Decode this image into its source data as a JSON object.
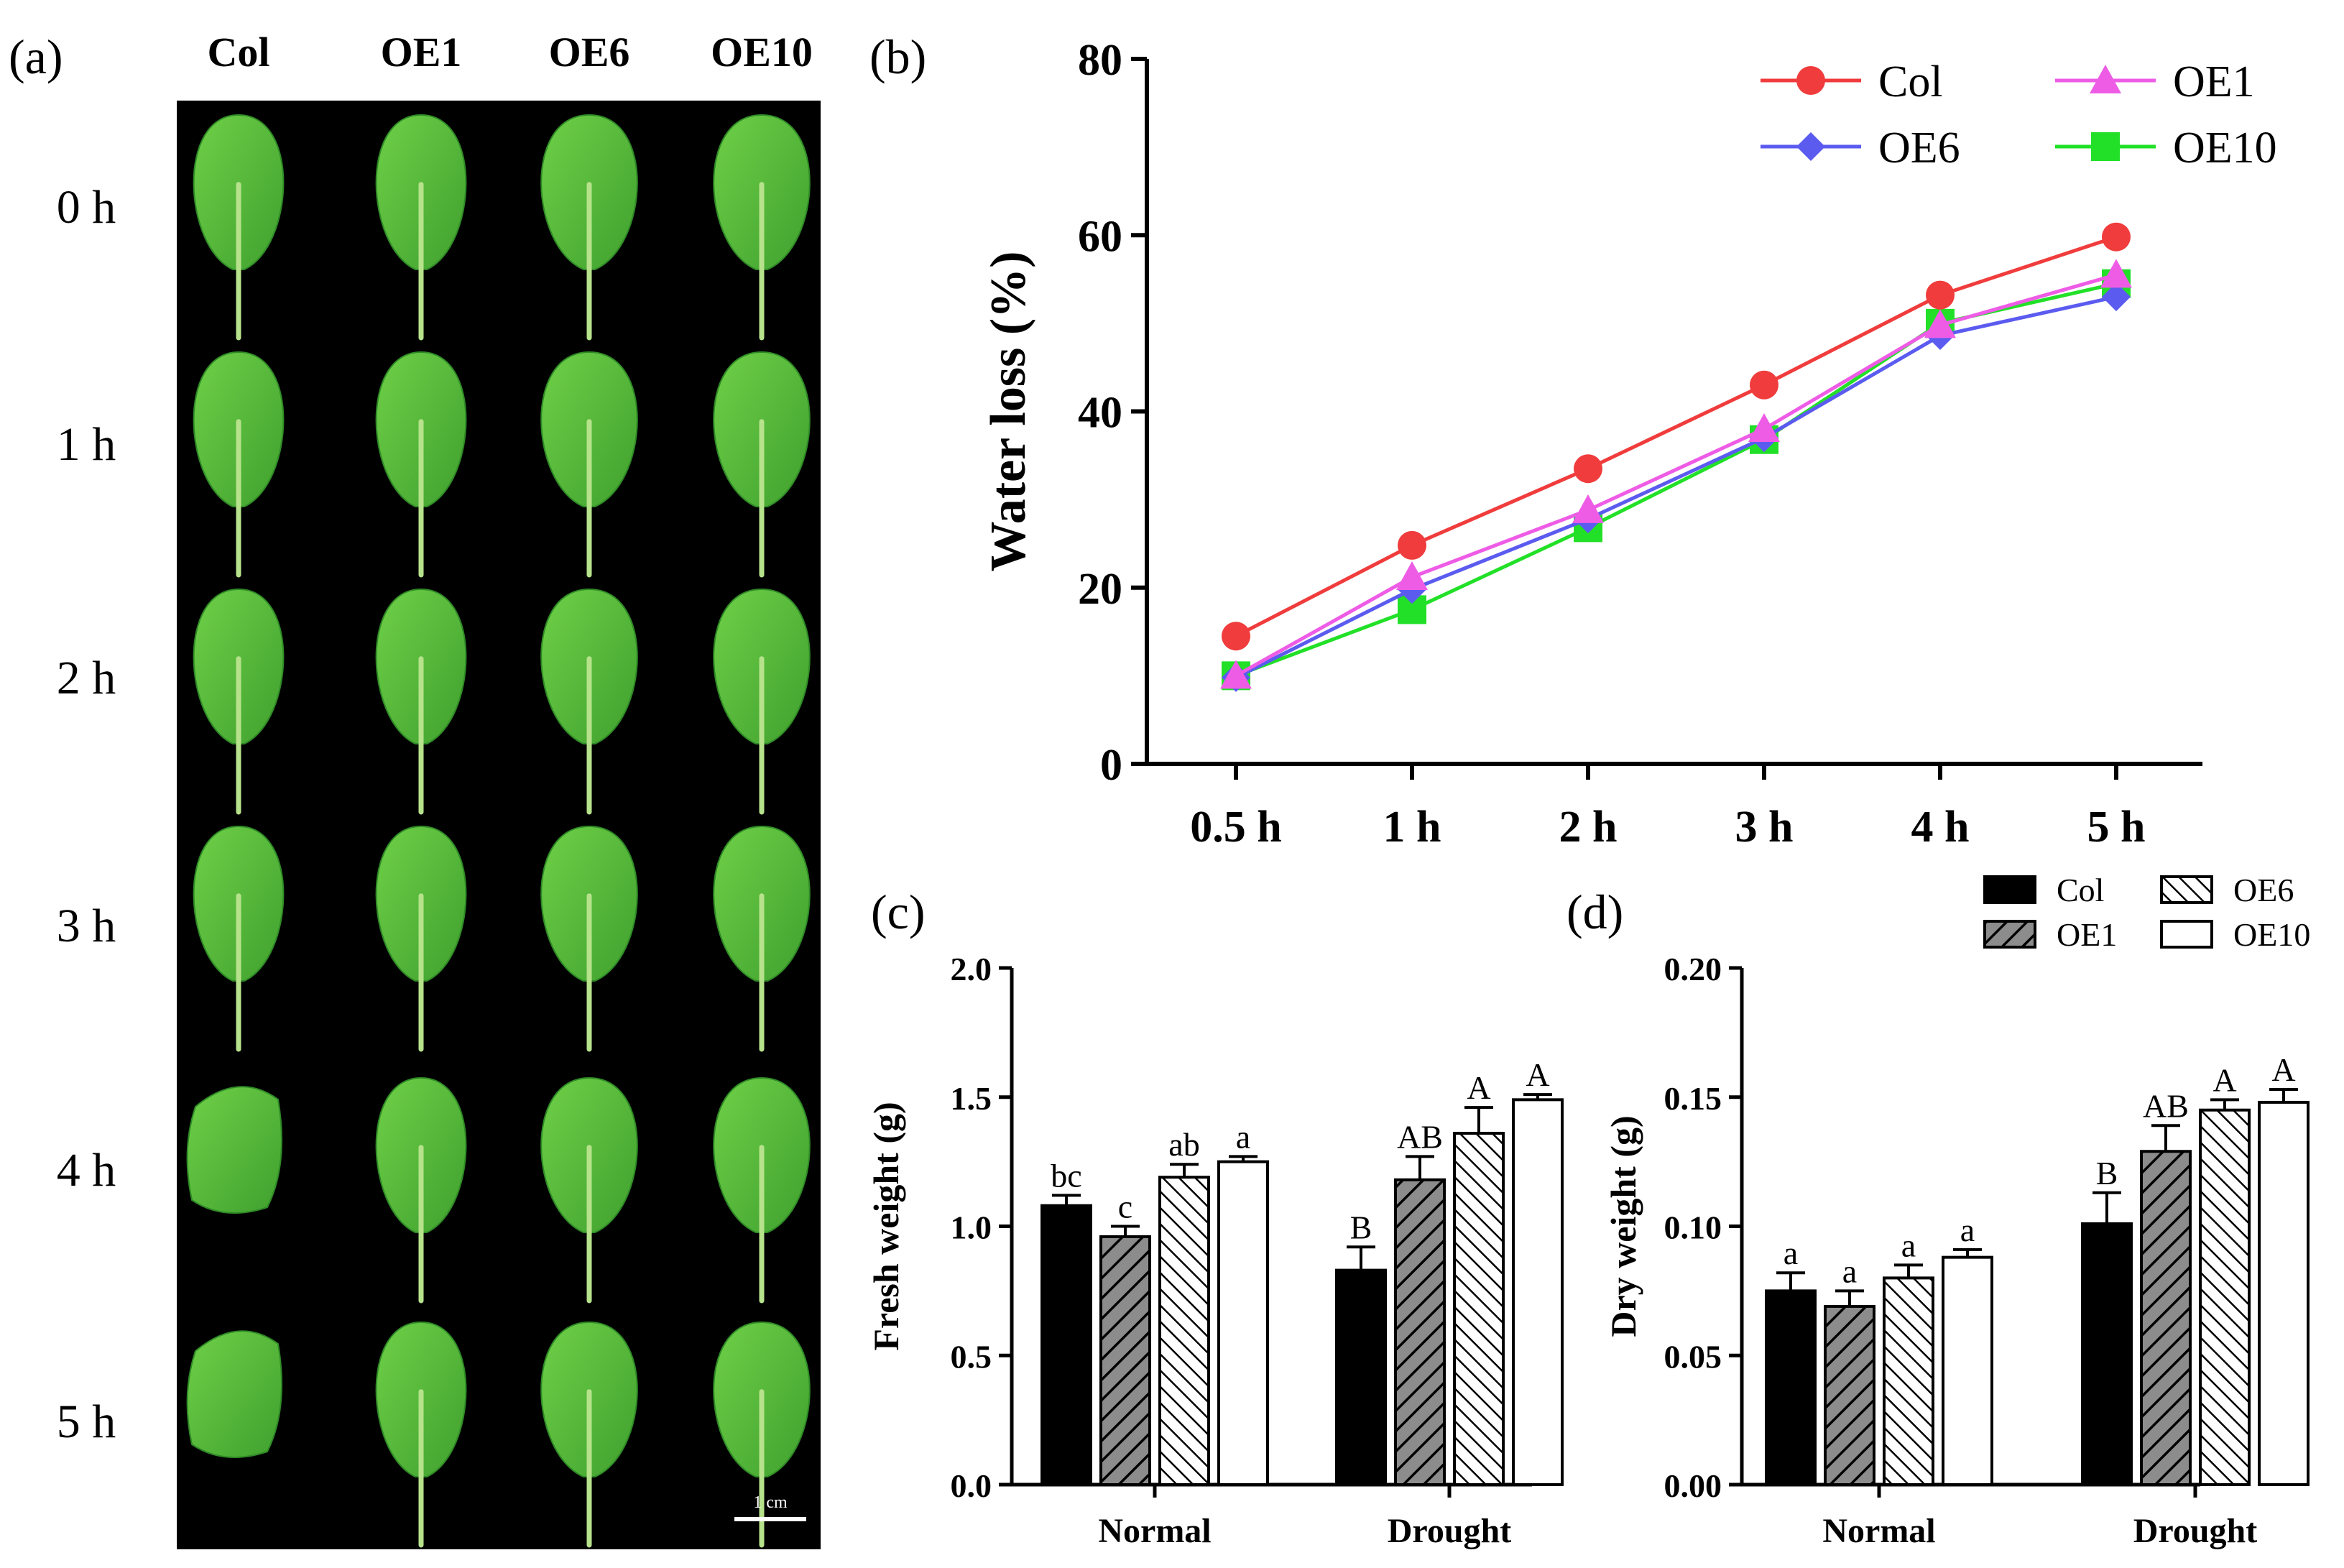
{
  "panel_a": {
    "label": "(a)",
    "columns": [
      "Col",
      "OE1",
      "OE6",
      "OE10"
    ],
    "rows": [
      "0 h",
      "1 h",
      "2 h",
      "3 h",
      "4 h",
      "5 h"
    ],
    "scale_bar": "1 cm",
    "colors": {
      "background": "#000000",
      "leaf": "#5fc23c",
      "leaf_dark": "#2f8a26",
      "midrib": "#b7e28c"
    }
  },
  "chart_data": [
    {
      "id": "b",
      "type": "line",
      "panel_label": "(b)",
      "title": "",
      "xlabel": "",
      "ylabel": "Water loss (%)",
      "categories": [
        "0.5 h",
        "1 h",
        "2 h",
        "3 h",
        "4 h",
        "5 h"
      ],
      "ylim": [
        0,
        80
      ],
      "yticks": [
        "0",
        "20",
        "40",
        "60",
        "80"
      ],
      "grid": false,
      "legend": "top-right",
      "series": [
        {
          "name": "Col",
          "marker": "circle",
          "color": "#f03c3c",
          "values": [
            14.5,
            24.8,
            33.5,
            43.0,
            53.2,
            59.8
          ]
        },
        {
          "name": "OE1",
          "marker": "triangle",
          "color": "#ee5ce6",
          "values": [
            10.0,
            21.2,
            28.8,
            38.0,
            49.8,
            55.5
          ]
        },
        {
          "name": "OE6",
          "marker": "diamond",
          "color": "#5b5bf0",
          "values": [
            9.8,
            19.8,
            27.8,
            37.0,
            48.6,
            53.0
          ]
        },
        {
          "name": "OE10",
          "marker": "square",
          "color": "#22e028",
          "values": [
            10.0,
            17.5,
            26.8,
            36.8,
            50.0,
            54.5
          ]
        }
      ]
    },
    {
      "id": "c",
      "type": "bar",
      "panel_label": "(c)",
      "title": "",
      "xlabel": "",
      "ylabel": "Fresh weight (g)",
      "categories": [
        "Normal",
        "Drought"
      ],
      "ylim": [
        0,
        2.0
      ],
      "yticks": [
        "0.0",
        "0.5",
        "1.0",
        "1.5",
        "2.0"
      ],
      "grid": false,
      "series": [
        {
          "name": "Col",
          "fill": "black",
          "values": [
            1.08,
            0.83
          ],
          "errors": [
            0.04,
            0.09
          ],
          "letters": [
            "bc",
            "B"
          ]
        },
        {
          "name": "OE1",
          "fill": "hatch1",
          "values": [
            0.96,
            1.18
          ],
          "errors": [
            0.04,
            0.09
          ],
          "letters": [
            "c",
            "AB"
          ]
        },
        {
          "name": "OE6",
          "fill": "hatch2",
          "values": [
            1.19,
            1.36
          ],
          "errors": [
            0.05,
            0.1
          ],
          "letters": [
            "ab",
            "A"
          ]
        },
        {
          "name": "OE10",
          "fill": "white",
          "values": [
            1.25,
            1.49
          ],
          "errors": [
            0.02,
            0.02
          ],
          "letters": [
            "a",
            "A"
          ]
        }
      ]
    },
    {
      "id": "d",
      "type": "bar",
      "panel_label": "(d)",
      "title": "",
      "xlabel": "",
      "ylabel": "Dry weight (g)",
      "categories": [
        "Normal",
        "Drought"
      ],
      "ylim": [
        0,
        0.2
      ],
      "yticks": [
        "0.00",
        "0.05",
        "0.10",
        "0.15",
        "0.20"
      ],
      "grid": false,
      "legend": "top",
      "series": [
        {
          "name": "Col",
          "fill": "black",
          "values": [
            0.075,
            0.101
          ],
          "errors": [
            0.007,
            0.012
          ],
          "letters": [
            "a",
            "B"
          ]
        },
        {
          "name": "OE1",
          "fill": "hatch1",
          "values": [
            0.069,
            0.129
          ],
          "errors": [
            0.006,
            0.01
          ],
          "letters": [
            "a",
            "AB"
          ]
        },
        {
          "name": "OE6",
          "fill": "hatch2",
          "values": [
            0.08,
            0.145
          ],
          "errors": [
            0.005,
            0.004
          ],
          "letters": [
            "a",
            "A"
          ]
        },
        {
          "name": "OE10",
          "fill": "white",
          "values": [
            0.088,
            0.148
          ],
          "errors": [
            0.003,
            0.005
          ],
          "letters": [
            "a",
            "A"
          ]
        }
      ]
    }
  ]
}
